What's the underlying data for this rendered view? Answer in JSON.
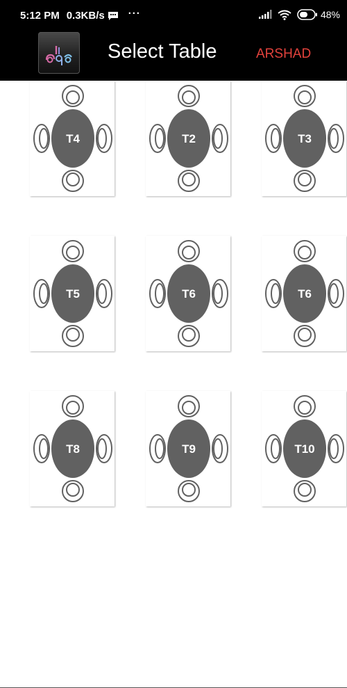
{
  "status_bar": {
    "time": "5:12 PM",
    "speed": "0.3KB/s",
    "more": "···",
    "battery": "48%"
  },
  "app_bar": {
    "title": "Select Table",
    "user": "ARSHAD"
  },
  "tables": [
    {
      "label": "T4"
    },
    {
      "label": "T2"
    },
    {
      "label": "T3"
    },
    {
      "label": "T5"
    },
    {
      "label": "T6"
    },
    {
      "label": "T6"
    },
    {
      "label": "T8"
    },
    {
      "label": "T9"
    },
    {
      "label": "T10"
    }
  ],
  "colors": {
    "table_fill": "#616161",
    "chair_stroke": "#616161",
    "user_accent": "#e2423c"
  }
}
